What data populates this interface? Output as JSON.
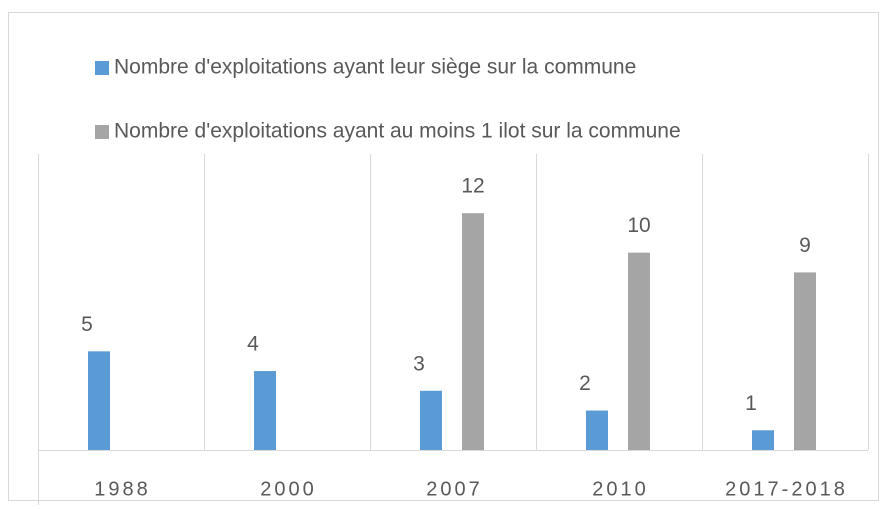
{
  "chart_data": {
    "type": "bar",
    "categories": [
      "1988",
      "2000",
      "2007",
      "2010",
      "2017-2018"
    ],
    "series": [
      {
        "name": "Nombre d'exploitations ayant leur siège sur la commune",
        "color": "#5b9bd5",
        "values": [
          5,
          4,
          3,
          2,
          1
        ]
      },
      {
        "name": "Nombre d'exploitations ayant au moins 1 ilot sur la commune",
        "color": "#a5a5a5",
        "values": [
          null,
          null,
          12,
          10,
          9
        ]
      }
    ],
    "ylim": [
      0,
      15
    ]
  }
}
